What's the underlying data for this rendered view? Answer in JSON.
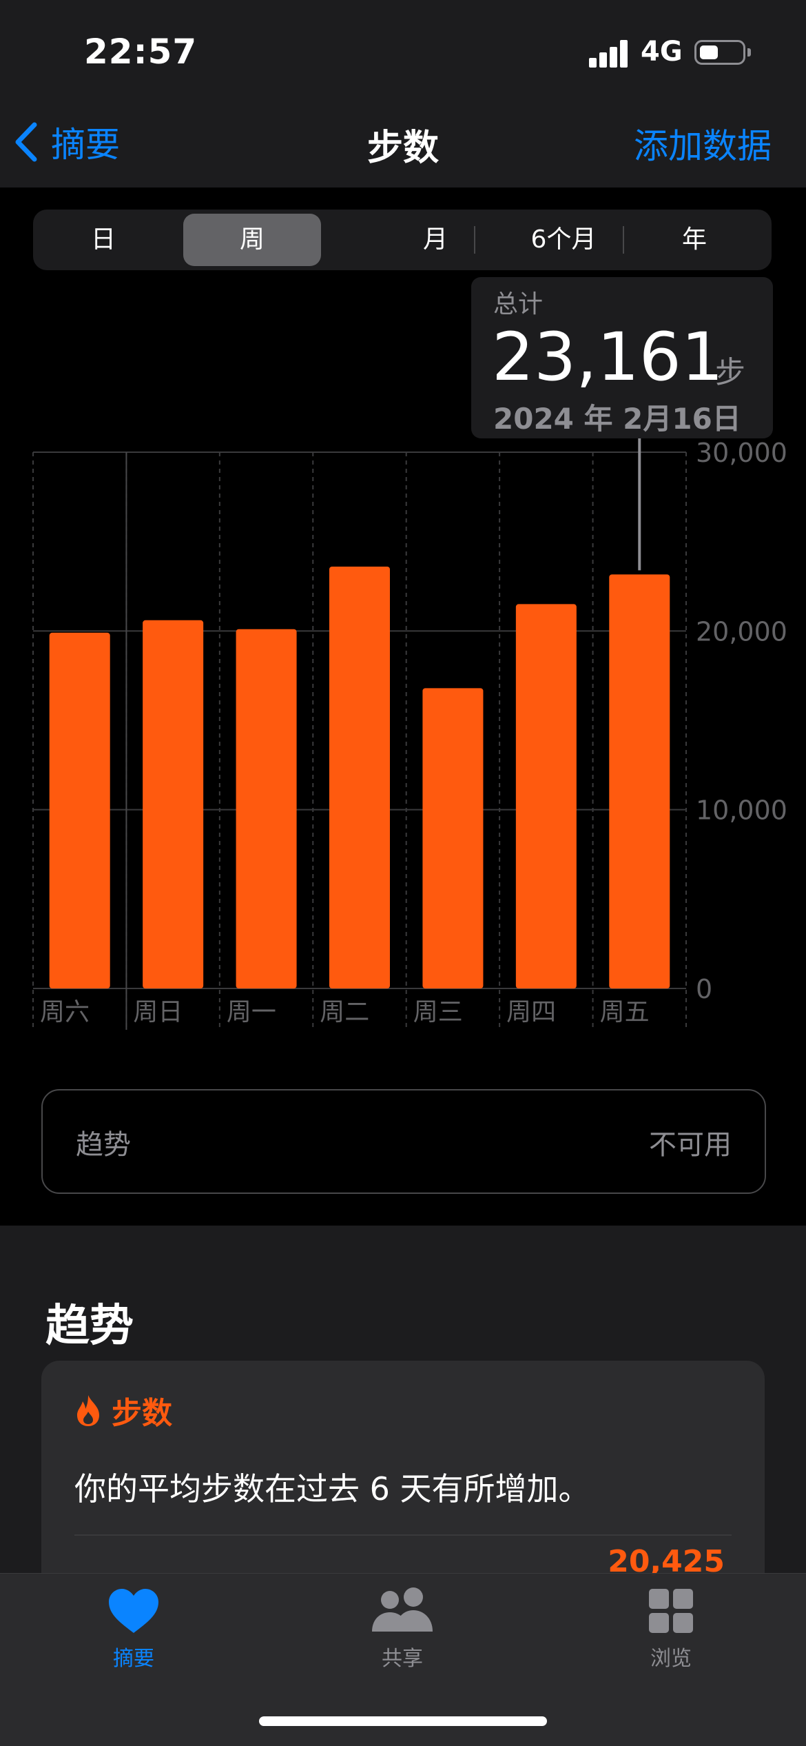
{
  "status_bar": {
    "time": "22:57",
    "network": "4G",
    "battery_percent": 45
  },
  "nav": {
    "back_label": "摘要",
    "title": "步数",
    "action_label": "添加数据"
  },
  "segments": [
    {
      "label": "日",
      "active": false
    },
    {
      "label": "周",
      "active": true
    },
    {
      "label": "月",
      "active": false
    },
    {
      "label": "6个月",
      "active": false
    },
    {
      "label": "年",
      "active": false
    }
  ],
  "tooltip": {
    "label": "总计",
    "value": "23,161",
    "unit": "步",
    "date": "2024 年 2月16日"
  },
  "chart_data": {
    "type": "bar",
    "categories": [
      "周六",
      "周日",
      "周一",
      "周二",
      "周三",
      "周四",
      "周五"
    ],
    "values": [
      19900,
      20600,
      20100,
      23600,
      16800,
      21500,
      23161
    ],
    "ylim": [
      0,
      30000
    ],
    "yticks": [
      0,
      10000,
      20000,
      30000
    ],
    "ytick_labels": [
      "0",
      "10,000",
      "20,000",
      "30,000"
    ],
    "highlighted_index": 6,
    "bar_color": "#ff5a0f",
    "grid": true,
    "y_axis_position": "right"
  },
  "trend_summary": {
    "label": "趋势",
    "status": "不可用"
  },
  "trends_section": {
    "title": "趋势",
    "card": {
      "category": "步数",
      "text": "你的平均步数在过去 6 天有所增加。",
      "peek_value": "20,425"
    }
  },
  "tabbar": [
    {
      "label": "摘要",
      "icon": "heart-icon",
      "active": true
    },
    {
      "label": "共享",
      "icon": "people-icon",
      "active": false
    },
    {
      "label": "浏览",
      "icon": "grid-icon",
      "active": false
    }
  ],
  "colors": {
    "accent": "#0a84ff",
    "steps": "#ff5a0f",
    "inactive": "#8e8e93"
  }
}
